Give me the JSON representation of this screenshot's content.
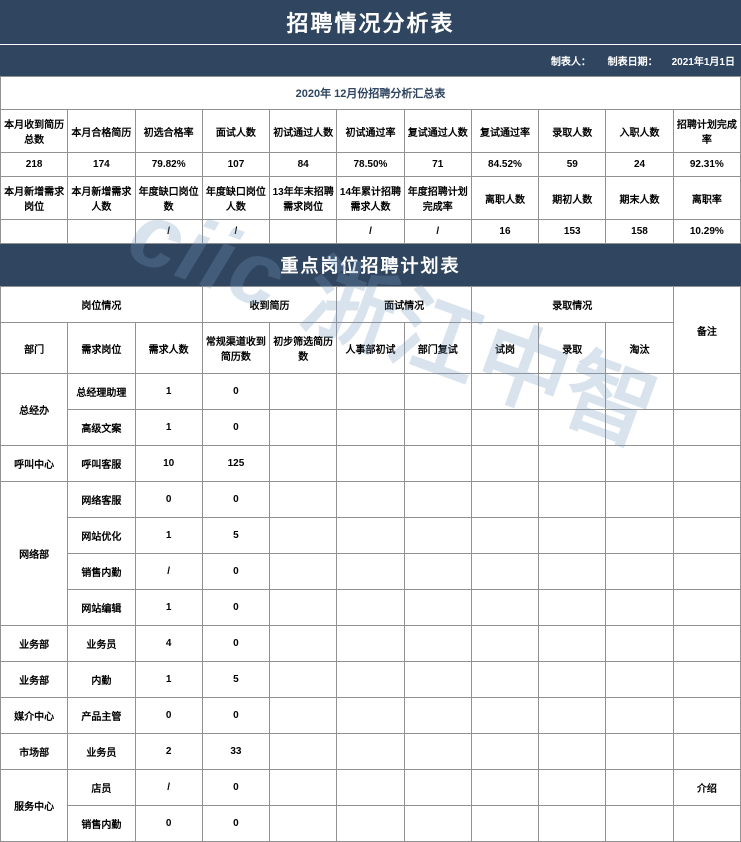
{
  "title1": "招聘情况分析表",
  "meta": {
    "author_label": "制表人：",
    "date_label": "制表日期：",
    "date_value": "2021年1月1日"
  },
  "summary_caption": "2020年 12月份招聘分析汇总表",
  "summary": {
    "row1_headers": [
      "本月收到简历总数",
      "本月合格简历",
      "初选合格率",
      "面试人数",
      "初试通过人数",
      "初试通过率",
      "复试通过人数",
      "复试通过率",
      "录取人数",
      "入职人数",
      "招聘计划完成率"
    ],
    "row1_values": [
      "218",
      "174",
      "79.82%",
      "107",
      "84",
      "78.50%",
      "71",
      "84.52%",
      "59",
      "24",
      "92.31%"
    ],
    "row2_headers": [
      "本月新增需求岗位",
      "本月新增需求人数",
      "年度缺口岗位数",
      "年度缺口岗位人数",
      "13年年末招聘需求岗位",
      "14年累计招聘需求人数",
      "年度招聘计划完成率",
      "离职人数",
      "期初人数",
      "期末人数",
      "离职率"
    ],
    "row2_values": [
      "",
      "",
      "/",
      "/",
      "",
      "/",
      "/",
      "16",
      "153",
      "158",
      "10.29%"
    ]
  },
  "title2": "重点岗位招聘计划表",
  "plan_group_headers": {
    "g1": "岗位情况",
    "g2": "收到简历",
    "g3": "面试情况",
    "g4": "录取情况",
    "g5": "备注"
  },
  "plan_sub_headers": [
    "部门",
    "需求岗位",
    "需求人数",
    "常规渠道收到简历数",
    "初步筛选简历数",
    "人事部初试",
    "部门复试",
    "试岗",
    "录取",
    "淘汰"
  ],
  "plan_rows": [
    {
      "dept": "总经办",
      "rowspan": 2,
      "cells": [
        "总经理助理",
        "1",
        "0",
        "",
        "",
        "",
        "",
        "",
        "",
        ""
      ]
    },
    {
      "dept": "",
      "rowspan": 0,
      "cells": [
        "高级文案",
        "1",
        "0",
        "",
        "",
        "",
        "",
        "",
        "",
        ""
      ]
    },
    {
      "dept": "呼叫中心",
      "rowspan": 1,
      "cells": [
        "呼叫客服",
        "10",
        "125",
        "",
        "",
        "",
        "",
        "",
        "",
        ""
      ]
    },
    {
      "dept": "网络部",
      "rowspan": 4,
      "cells": [
        "网络客服",
        "0",
        "0",
        "",
        "",
        "",
        "",
        "",
        "",
        ""
      ]
    },
    {
      "dept": "",
      "rowspan": 0,
      "cells": [
        "网站优化",
        "1",
        "5",
        "",
        "",
        "",
        "",
        "",
        "",
        ""
      ]
    },
    {
      "dept": "",
      "rowspan": 0,
      "cells": [
        "销售内勤",
        "/",
        "0",
        "",
        "",
        "",
        "",
        "",
        "",
        ""
      ]
    },
    {
      "dept": "",
      "rowspan": 0,
      "cells": [
        "网站编辑",
        "1",
        "0",
        "",
        "",
        "",
        "",
        "",
        "",
        ""
      ]
    },
    {
      "dept": "业务部",
      "rowspan": 1,
      "cells": [
        "业务员",
        "4",
        "0",
        "",
        "",
        "",
        "",
        "",
        "",
        ""
      ]
    },
    {
      "dept": "业务部",
      "rowspan": 1,
      "cells": [
        "内勤",
        "1",
        "5",
        "",
        "",
        "",
        "",
        "",
        "",
        ""
      ]
    },
    {
      "dept": "媒介中心",
      "rowspan": 1,
      "cells": [
        "产品主管",
        "0",
        "0",
        "",
        "",
        "",
        "",
        "",
        "",
        ""
      ]
    },
    {
      "dept": "市场部",
      "rowspan": 1,
      "cells": [
        "业务员",
        "2",
        "33",
        "",
        "",
        "",
        "",
        "",
        "",
        ""
      ]
    },
    {
      "dept": "服务中心",
      "rowspan": 2,
      "cells": [
        "店员",
        "/",
        "0",
        "",
        "",
        "",
        "",
        "",
        "",
        "介绍"
      ]
    },
    {
      "dept": "",
      "rowspan": 0,
      "cells": [
        "销售内勤",
        "0",
        "0",
        "",
        "",
        "",
        "",
        "",
        "",
        ""
      ]
    }
  ],
  "watermark": {
    "en": "ciic",
    "cn": "浙江中智"
  },
  "colors": {
    "header_bg": "#2f4560",
    "header_fg": "#ffffff",
    "border": "#929292",
    "caption_fg": "#2f4560",
    "watermark": "rgba(120,155,190,0.28)"
  }
}
